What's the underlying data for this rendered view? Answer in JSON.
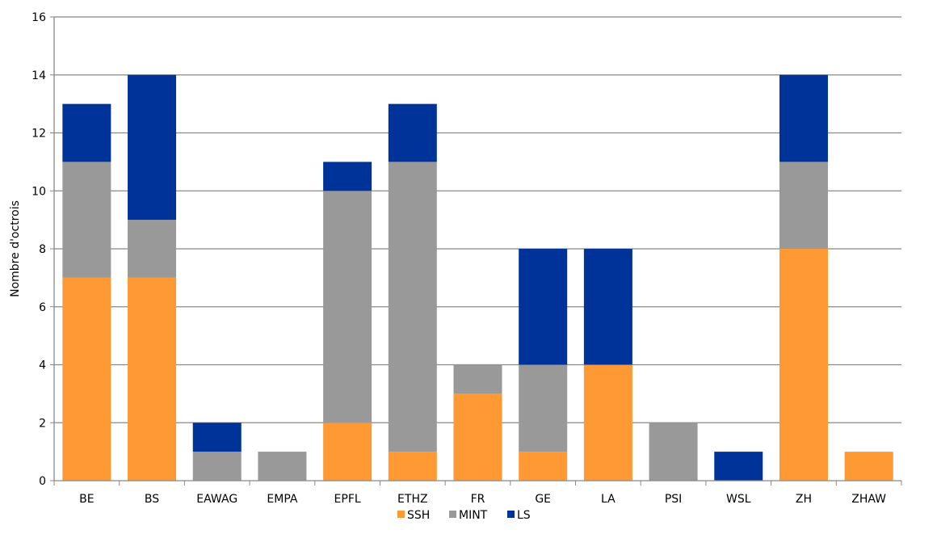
{
  "chart_data": {
    "type": "bar",
    "stacked": true,
    "title": "",
    "xlabel": "",
    "ylabel": "Nombre d'octrois",
    "ylim": [
      0,
      16
    ],
    "yticks": [
      0,
      2,
      4,
      6,
      8,
      10,
      12,
      14,
      16
    ],
    "grid": "horizontal",
    "legend": "bottom-center",
    "categories": [
      "BE",
      "BS",
      "EAWAG",
      "EMPA",
      "EPFL",
      "ETHZ",
      "FR",
      "GE",
      "LA",
      "PSI",
      "WSL",
      "ZH",
      "ZHAW"
    ],
    "series": [
      {
        "name": "SSH",
        "color": "#ff9933",
        "values": [
          7,
          7,
          0,
          0,
          2,
          1,
          3,
          1,
          4,
          0,
          0,
          8,
          1
        ]
      },
      {
        "name": "MINT",
        "color": "#999999",
        "values": [
          4,
          2,
          1,
          1,
          8,
          10,
          1,
          3,
          0,
          2,
          0,
          3,
          0
        ]
      },
      {
        "name": "LS",
        "color": "#003399",
        "values": [
          2,
          5,
          1,
          0,
          1,
          2,
          0,
          4,
          4,
          0,
          1,
          3,
          0
        ]
      }
    ]
  }
}
